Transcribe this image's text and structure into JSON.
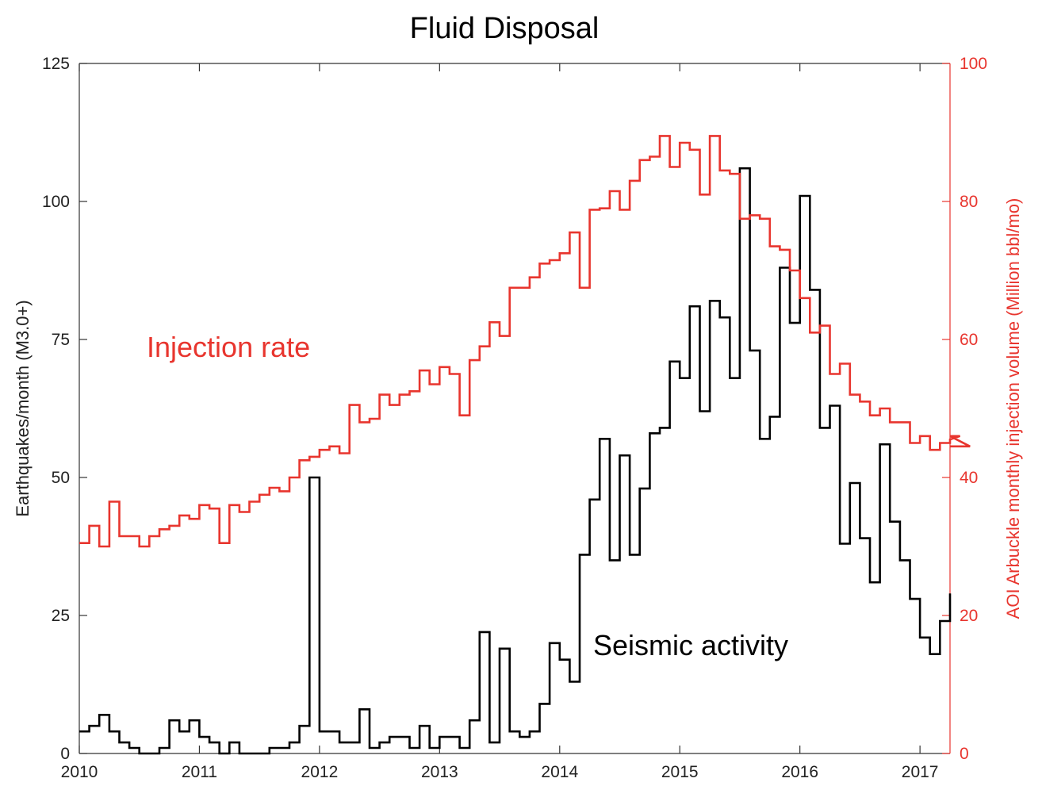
{
  "chart_data": {
    "type": "line",
    "title": "Fluid Disposal",
    "xlabel": "",
    "ylabel_left": "Earthquakes/month (M3.0+)",
    "ylabel_right": "AOI Arbuckle monthly injection volume (Million bbl/mo)",
    "xlim": [
      2010,
      2017.25
    ],
    "ylim_left": [
      0,
      125
    ],
    "ylim_right": [
      0,
      100
    ],
    "xticks": [
      2010,
      2011,
      2012,
      2013,
      2014,
      2015,
      2016,
      2017
    ],
    "yticks_left": [
      0,
      25,
      50,
      75,
      100,
      125
    ],
    "yticks_right": [
      0,
      20,
      40,
      60,
      80,
      100
    ],
    "grid": false,
    "colors": {
      "seismic": "#000000",
      "injection": "#e8352e",
      "right_axis": "#e8352e"
    },
    "annotations": [
      {
        "text": "Injection rate",
        "series": "injection"
      },
      {
        "text": "Seismic activity",
        "series": "seismic"
      }
    ],
    "series": [
      {
        "name": "Seismic activity",
        "axis": "left",
        "style": "step",
        "start": 2010,
        "step": 0.08333,
        "values": [
          4,
          5,
          7,
          4,
          2,
          1,
          0,
          0,
          1,
          6,
          4,
          6,
          3,
          2,
          0,
          2,
          0,
          0,
          0,
          1,
          1,
          2,
          5,
          50,
          4,
          4,
          2,
          2,
          8,
          1,
          2,
          3,
          3,
          1,
          5,
          1,
          3,
          3,
          1,
          6,
          22,
          2,
          19,
          4,
          3,
          4,
          9,
          20,
          17,
          13,
          36,
          46,
          57,
          35,
          54,
          36,
          48,
          58,
          59,
          71,
          68,
          81,
          62,
          82,
          79,
          68,
          106,
          73,
          57,
          61,
          88,
          78,
          101,
          84,
          59,
          63,
          38,
          49,
          39,
          31,
          56,
          42,
          35,
          28,
          21,
          18,
          24,
          29
        ]
      },
      {
        "name": "Injection rate",
        "axis": "right",
        "style": "step",
        "start": 2010,
        "step": 0.08333,
        "values": [
          30.5,
          33,
          30,
          36.5,
          31.5,
          31.5,
          30,
          31.5,
          32.5,
          33,
          34.5,
          34,
          36,
          35.5,
          30.5,
          36,
          35,
          36.5,
          37.5,
          38.5,
          38,
          40,
          42.5,
          43,
          44,
          44.5,
          43.5,
          50.5,
          48,
          48.5,
          52,
          50.5,
          52,
          52.5,
          55.5,
          53.5,
          56,
          55,
          49,
          57,
          59,
          62.5,
          60.5,
          67.5,
          67.5,
          69,
          71,
          71.5,
          72.5,
          75.5,
          67.5,
          78.8,
          79,
          81.5,
          78.8,
          83,
          86,
          86.5,
          89.5,
          85,
          88.5,
          87.5,
          81,
          89.5,
          84.5,
          84,
          77.5,
          78,
          77.5,
          73.5,
          73,
          70,
          66,
          61,
          62,
          55,
          56.5,
          52,
          51,
          49,
          50,
          48,
          48,
          45,
          46,
          44,
          45,
          45.5,
          46,
          44.5
        ]
      }
    ]
  }
}
